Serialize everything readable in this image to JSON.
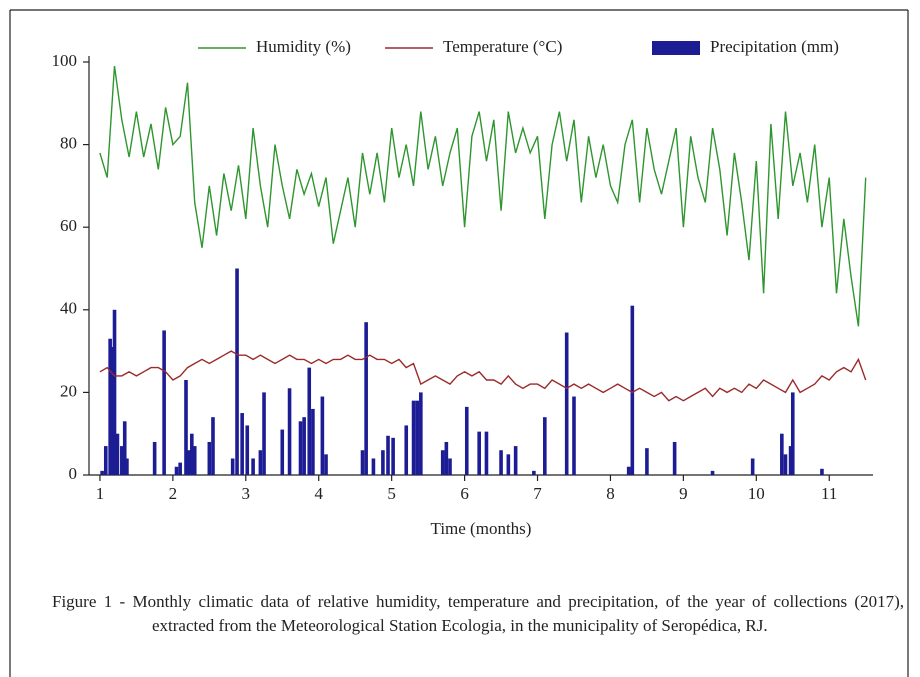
{
  "chart_data": {
    "type": "line",
    "xlabel": "Time (months)",
    "caption": "Figure 1 - Monthly climatic data of relative humidity, temperature and precipitation, of the year of collections (2017), extracted from the Meteorological Station Ecologia, in the municipality of Seropédica, RJ.",
    "xlim": [
      0.85,
      11.6
    ],
    "ylim": [
      0,
      100
    ],
    "xticks": [
      1,
      2,
      3,
      4,
      5,
      6,
      7,
      8,
      9,
      10,
      11
    ],
    "yticks": [
      0,
      20,
      40,
      60,
      80,
      100
    ],
    "legend": "top",
    "x": [
      1.0,
      1.1,
      1.2,
      1.3,
      1.4,
      1.5,
      1.6,
      1.7,
      1.8,
      1.9,
      2.0,
      2.1,
      2.2,
      2.3,
      2.4,
      2.5,
      2.6,
      2.7,
      2.8,
      2.9,
      3.0,
      3.1,
      3.2,
      3.3,
      3.4,
      3.5,
      3.6,
      3.7,
      3.8,
      3.9,
      4.0,
      4.1,
      4.2,
      4.3,
      4.4,
      4.5,
      4.6,
      4.7,
      4.8,
      4.9,
      5.0,
      5.1,
      5.2,
      5.3,
      5.4,
      5.5,
      5.6,
      5.7,
      5.8,
      5.9,
      6.0,
      6.1,
      6.2,
      6.3,
      6.4,
      6.5,
      6.6,
      6.7,
      6.8,
      6.9,
      7.0,
      7.1,
      7.2,
      7.3,
      7.4,
      7.5,
      7.6,
      7.7,
      7.8,
      7.9,
      8.0,
      8.1,
      8.2,
      8.3,
      8.4,
      8.5,
      8.6,
      8.7,
      8.8,
      8.9,
      9.0,
      9.1,
      9.2,
      9.3,
      9.4,
      9.5,
      9.6,
      9.7,
      9.8,
      9.9,
      10.0,
      10.1,
      10.2,
      10.3,
      10.4,
      10.5,
      10.6,
      10.7,
      10.8,
      10.9,
      11.0,
      11.1,
      11.2,
      11.3,
      11.4,
      11.5
    ],
    "series": [
      {
        "name": "Humidity (%)",
        "type": "line",
        "color": "#2e962e",
        "values": [
          78,
          72,
          99,
          86,
          77,
          88,
          77,
          85,
          74,
          89,
          80,
          82,
          95,
          66,
          55,
          70,
          58,
          73,
          64,
          75,
          62,
          84,
          70,
          60,
          80,
          70,
          62,
          74,
          68,
          73,
          65,
          72,
          56,
          64,
          72,
          60,
          78,
          68,
          78,
          66,
          84,
          72,
          80,
          70,
          88,
          74,
          82,
          70,
          78,
          84,
          60,
          82,
          88,
          76,
          86,
          64,
          88,
          78,
          84,
          78,
          82,
          62,
          80,
          88,
          76,
          86,
          66,
          82,
          72,
          80,
          70,
          66,
          80,
          86,
          66,
          84,
          74,
          68,
          76,
          84,
          60,
          82,
          72,
          66,
          84,
          74,
          58,
          78,
          66,
          52,
          76,
          44,
          85,
          62,
          88,
          70,
          78,
          66,
          80,
          60,
          72,
          44,
          62,
          48,
          36,
          72
        ]
      },
      {
        "name": "Temperature (°C)",
        "type": "line",
        "color": "#9b2b2b",
        "values": [
          25,
          26,
          24,
          24,
          25,
          24,
          25,
          26,
          26,
          25,
          23,
          24,
          26,
          27,
          28,
          27,
          28,
          29,
          30,
          29,
          29,
          28,
          29,
          28,
          27,
          28,
          29,
          28,
          28,
          27,
          28,
          27,
          28,
          28,
          29,
          28,
          28,
          29,
          28,
          28,
          27,
          28,
          26,
          27,
          22,
          23,
          24,
          23,
          22,
          24,
          25,
          24,
          25,
          23,
          23,
          22,
          24,
          22,
          21,
          22,
          22,
          21,
          23,
          22,
          21,
          22,
          21,
          22,
          21,
          20,
          21,
          22,
          21,
          20,
          21,
          20,
          19,
          20,
          18,
          19,
          18,
          19,
          20,
          21,
          19,
          21,
          20,
          21,
          20,
          22,
          21,
          23,
          22,
          21,
          20,
          23,
          20,
          21,
          22,
          24,
          23,
          25,
          26,
          25,
          28,
          23
        ]
      },
      {
        "name": "Precipitation (mm)",
        "type": "bar",
        "color": "#1c1c94",
        "x": [
          1.03,
          1.08,
          1.14,
          1.17,
          1.2,
          1.24,
          1.3,
          1.34,
          1.37,
          1.75,
          1.88,
          2.05,
          2.1,
          2.18,
          2.22,
          2.26,
          2.3,
          2.5,
          2.55,
          2.82,
          2.88,
          2.95,
          3.02,
          3.1,
          3.2,
          3.25,
          3.5,
          3.6,
          3.75,
          3.8,
          3.87,
          3.92,
          4.05,
          4.1,
          4.6,
          4.65,
          4.75,
          4.88,
          4.95,
          5.02,
          5.2,
          5.3,
          5.35,
          5.4,
          5.7,
          5.75,
          5.8,
          6.03,
          6.2,
          6.3,
          6.5,
          6.6,
          6.7,
          6.95,
          7.1,
          7.4,
          7.5,
          8.25,
          8.3,
          8.5,
          8.88,
          9.4,
          9.95,
          10.35,
          10.4,
          10.47,
          10.5,
          10.9
        ],
        "values": [
          1,
          7,
          33,
          31,
          40,
          10,
          7,
          13,
          4,
          8,
          35,
          2,
          3,
          23,
          6,
          10,
          7,
          8,
          14,
          4,
          50,
          15,
          12,
          4,
          6,
          20,
          11,
          21,
          13,
          14,
          26,
          16,
          19,
          5,
          6,
          37,
          4,
          6,
          9.5,
          9,
          12,
          18,
          18,
          20,
          6,
          8,
          4,
          16.5,
          10.5,
          10.5,
          6,
          5,
          7,
          1,
          14,
          34.5,
          19,
          2,
          41,
          6.5,
          8,
          1,
          4,
          10,
          5,
          7,
          20,
          1.5
        ]
      }
    ]
  }
}
